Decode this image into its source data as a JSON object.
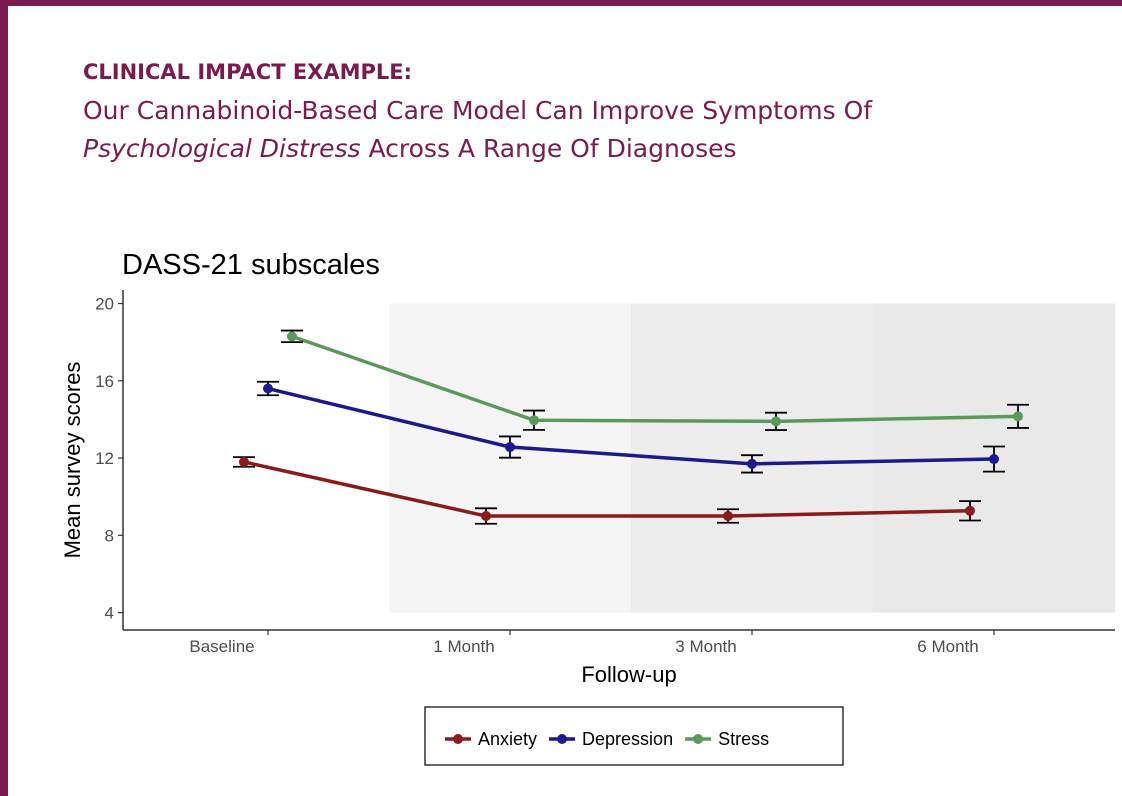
{
  "header": {
    "title": "CLINICAL IMPACT EXAMPLE:",
    "subtitle_start": "Our Cannabinoid-Based Care Model Can Improve Symptoms Of",
    "subtitle_italic": "Psychological Distress",
    "subtitle_end": "Across A Range Of Diagnoses"
  },
  "chart_data": {
    "type": "line",
    "title": "DASS-21 subscales",
    "x_label": "Follow-up",
    "y_label": "Mean survey scores",
    "categories": [
      "Baseline",
      "1 Month",
      "3 Month",
      "6 Month"
    ],
    "series": [
      {
        "name": "Anxiety",
        "color": "#8b1a1a",
        "values": [
          11.8,
          9.0,
          9.0,
          9.27
        ],
        "errors": [
          0.25,
          0.4,
          0.35,
          0.5
        ]
      },
      {
        "name": "Depression",
        "color": "#1a1a8f",
        "values": [
          15.6,
          12.57,
          11.7,
          11.95
        ],
        "errors": [
          0.35,
          0.55,
          0.45,
          0.65
        ]
      },
      {
        "name": "Stress",
        "color": "#5a995a",
        "values": [
          18.3,
          13.96,
          13.9,
          14.16
        ],
        "errors": [
          0.3,
          0.5,
          0.45,
          0.6
        ]
      }
    ],
    "ylim": [
      3.1,
      20.7
    ],
    "yticks": [
      4,
      8,
      12,
      16,
      20
    ],
    "legend": "bottom"
  }
}
